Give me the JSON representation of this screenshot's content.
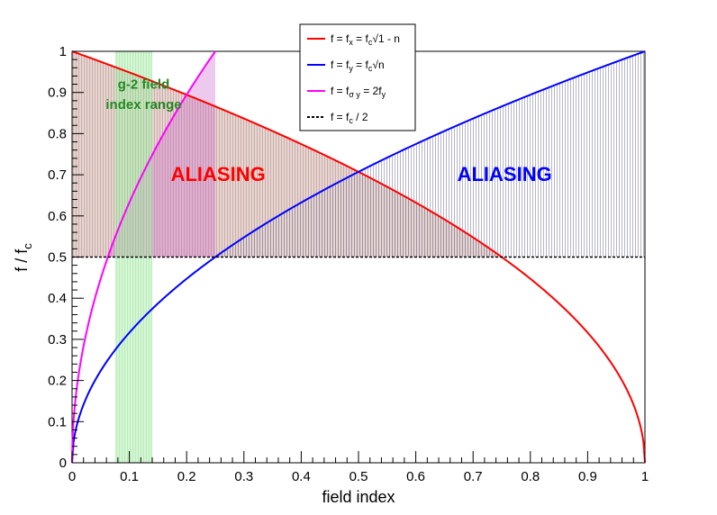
{
  "chart_data": {
    "type": "line",
    "xlabel": "field index",
    "ylabel_main": "f / f",
    "ylabel_sub": "c",
    "xlim": [
      0,
      1
    ],
    "ylim": [
      0,
      1
    ],
    "x_ticks": [
      "0",
      "0.1",
      "0.2",
      "0.3",
      "0.4",
      "0.5",
      "0.6",
      "0.7",
      "0.8",
      "0.9",
      "1"
    ],
    "y_ticks": [
      "0",
      "0.1",
      "0.2",
      "0.3",
      "0.4",
      "0.5",
      "0.6",
      "0.7",
      "0.8",
      "0.9",
      "1"
    ],
    "series": [
      {
        "name": "f = f_x = f_c √(1 - n)",
        "color": "#ff0000",
        "formula": "sqrt(1-n)",
        "x_range": [
          0,
          1
        ]
      },
      {
        "name": "f = f_y = f_c √n",
        "color": "#0000ff",
        "formula": "sqrt(n)",
        "x_range": [
          0,
          1
        ]
      },
      {
        "name": "f = f_σy = 2f_y",
        "color": "#ff00ff",
        "formula": "2*sqrt(n)",
        "x_range": [
          0,
          0.25
        ]
      },
      {
        "name": "f = f_c / 2",
        "color": "#000000",
        "formula": "0.5",
        "style": "dashed",
        "x_range": [
          0,
          1
        ]
      }
    ],
    "shaded_regions": [
      {
        "label": "ALIASING",
        "color": "#ff0000",
        "between": [
          "f_x",
          "0.5"
        ],
        "x_range": [
          0,
          0.75
        ]
      },
      {
        "label": "ALIASING",
        "color": "#0000ff",
        "between": [
          "f_y",
          "0.5"
        ],
        "x_range": [
          0.25,
          1
        ]
      },
      {
        "label": "g-2 field index range",
        "color": "#00bb00",
        "x_range": [
          0.075,
          0.14
        ],
        "y_range": [
          0,
          1
        ]
      }
    ],
    "legend": {
      "position": "top-center",
      "entries": [
        {
          "color": "#ff0000",
          "style": "solid",
          "main": "f = f",
          "sub": "x",
          "main2": " = f",
          "sub2": "c",
          "sqrt": "1 - n"
        },
        {
          "color": "#0000ff",
          "style": "solid",
          "main": "f = f",
          "sub": "y",
          "main2": " = f",
          "sub2": "c",
          "sqrt": "n"
        },
        {
          "color": "#ff00ff",
          "style": "solid",
          "main": "f = f",
          "sub": "σ y",
          "main2": " = 2f",
          "sub2": "y",
          "sqrt": ""
        },
        {
          "color": "#000000",
          "style": "dashed",
          "main": "f = f",
          "sub": "c",
          "main2": " / 2",
          "sub2": "",
          "sqrt": ""
        }
      ]
    },
    "annotations": {
      "aliasing_red": {
        "text": "ALIASING",
        "color": "#ff0000",
        "x": 0.255,
        "y": 0.7
      },
      "aliasing_blue": {
        "text": "ALIASING",
        "color": "#0000ff",
        "x": 0.755,
        "y": 0.7
      },
      "g2_line1": {
        "text": "g-2 field",
        "color": "#228822",
        "x": 0.125,
        "y": 0.925
      },
      "g2_line2": {
        "text": "index range",
        "color": "#228822",
        "x": 0.125,
        "y": 0.875
      }
    }
  }
}
